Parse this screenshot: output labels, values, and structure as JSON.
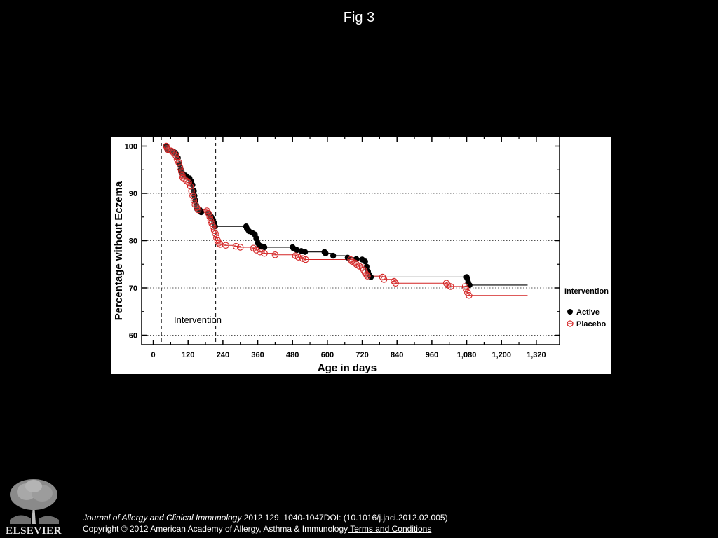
{
  "figure": {
    "title": "Fig 3"
  },
  "chart_data": {
    "type": "line",
    "subtype": "kaplan-meier step plot with censor markers",
    "title": "",
    "xlabel": "Age in days",
    "ylabel": "Percentage without Eczema",
    "xlim": [
      -40,
      1400
    ],
    "ylim": [
      58,
      102
    ],
    "xticks": [
      0,
      120,
      240,
      360,
      480,
      600,
      720,
      840,
      960,
      1080,
      1200,
      1320
    ],
    "xtick_labels": [
      "0",
      "120",
      "240",
      "360",
      "480",
      "600",
      "720",
      "840",
      "960",
      "1,080",
      "1,200",
      "1,320"
    ],
    "yticks": [
      60,
      70,
      80,
      90,
      100
    ],
    "ytick_labels": [
      "60",
      "70",
      "80",
      "90",
      "100"
    ],
    "grid": "horizontal dotted",
    "intervention_window": {
      "label": "Intervention",
      "start": 28,
      "end": 215
    },
    "legend": {
      "title": "Intervention",
      "position": "right",
      "entries": [
        "Active",
        "Placebo"
      ]
    },
    "series": [
      {
        "name": "Active",
        "color": "#000000",
        "marker": "filled-circle",
        "points": [
          [
            0,
            100
          ],
          [
            45,
            100
          ],
          [
            47,
            99.6
          ],
          [
            50,
            99.2
          ],
          [
            60,
            99
          ],
          [
            70,
            98.8
          ],
          [
            75,
            98.6
          ],
          [
            80,
            98.2
          ],
          [
            85,
            97.5
          ],
          [
            90,
            96.2
          ],
          [
            95,
            95
          ],
          [
            100,
            94.2
          ],
          [
            110,
            93.8
          ],
          [
            115,
            93.5
          ],
          [
            125,
            93.2
          ],
          [
            130,
            92.6
          ],
          [
            135,
            91.8
          ],
          [
            140,
            90.5
          ],
          [
            142,
            89.5
          ],
          [
            145,
            88.5
          ],
          [
            148,
            87.5
          ],
          [
            150,
            86.8
          ],
          [
            160,
            86.5
          ],
          [
            165,
            86
          ],
          [
            190,
            85.8
          ],
          [
            195,
            85.4
          ],
          [
            200,
            85
          ],
          [
            205,
            84.5
          ],
          [
            210,
            83.7
          ],
          [
            213,
            83
          ],
          [
            320,
            83
          ],
          [
            323,
            82.5
          ],
          [
            330,
            82
          ],
          [
            340,
            81.7
          ],
          [
            350,
            81.3
          ],
          [
            355,
            80.5
          ],
          [
            360,
            79.5
          ],
          [
            365,
            79
          ],
          [
            372,
            78.8
          ],
          [
            383,
            78.6
          ],
          [
            480,
            78.6
          ],
          [
            484,
            78.3
          ],
          [
            495,
            78
          ],
          [
            510,
            77.8
          ],
          [
            523,
            77.6
          ],
          [
            590,
            77.6
          ],
          [
            594,
            77.3
          ],
          [
            620,
            76.8
          ],
          [
            670,
            76.4
          ],
          [
            700,
            76.1
          ],
          [
            720,
            76
          ],
          [
            730,
            75.6
          ],
          [
            735,
            74.5
          ],
          [
            740,
            73.5
          ],
          [
            745,
            72.8
          ],
          [
            750,
            72.3
          ],
          [
            1080,
            72.3
          ],
          [
            1082,
            72
          ],
          [
            1085,
            71.2
          ],
          [
            1090,
            70.6
          ],
          [
            1290,
            70.6
          ]
        ]
      },
      {
        "name": "Placebo",
        "color": "#d42424",
        "marker": "open-circle",
        "points": [
          [
            0,
            100
          ],
          [
            45,
            100
          ],
          [
            48,
            99.5
          ],
          [
            52,
            99.2
          ],
          [
            62,
            99
          ],
          [
            70,
            98.6
          ],
          [
            78,
            98
          ],
          [
            82,
            97.2
          ],
          [
            88,
            96.5
          ],
          [
            92,
            95.5
          ],
          [
            97,
            94.6
          ],
          [
            100,
            93.8
          ],
          [
            102,
            93.3
          ],
          [
            108,
            93
          ],
          [
            115,
            92.6
          ],
          [
            122,
            92.3
          ],
          [
            128,
            91.5
          ],
          [
            132,
            90.5
          ],
          [
            136,
            89.5
          ],
          [
            140,
            88.5
          ],
          [
            144,
            87.6
          ],
          [
            150,
            87
          ],
          [
            155,
            86.5
          ],
          [
            185,
            86.3
          ],
          [
            190,
            85.8
          ],
          [
            195,
            85
          ],
          [
            198,
            84.3
          ],
          [
            202,
            83.6
          ],
          [
            206,
            83
          ],
          [
            210,
            82.2
          ],
          [
            214,
            81.5
          ],
          [
            218,
            80.6
          ],
          [
            222,
            80
          ],
          [
            226,
            79.5
          ],
          [
            230,
            79.2
          ],
          [
            250,
            79
          ],
          [
            285,
            78.8
          ],
          [
            300,
            78.6
          ],
          [
            345,
            78.4
          ],
          [
            355,
            78
          ],
          [
            368,
            77.6
          ],
          [
            383,
            77.3
          ],
          [
            420,
            77
          ],
          [
            490,
            76.8
          ],
          [
            500,
            76.5
          ],
          [
            515,
            76.2
          ],
          [
            525,
            76
          ],
          [
            680,
            76
          ],
          [
            685,
            75.6
          ],
          [
            695,
            75.3
          ],
          [
            700,
            75
          ],
          [
            710,
            74.6
          ],
          [
            720,
            74.3
          ],
          [
            725,
            73.8
          ],
          [
            730,
            73.2
          ],
          [
            735,
            72.8
          ],
          [
            738,
            72.5
          ],
          [
            790,
            72.3
          ],
          [
            795,
            71.8
          ],
          [
            830,
            71.4
          ],
          [
            835,
            71
          ],
          [
            1010,
            71
          ],
          [
            1015,
            70.6
          ],
          [
            1025,
            70.3
          ],
          [
            1075,
            70.3
          ],
          [
            1078,
            69.8
          ],
          [
            1083,
            69
          ],
          [
            1088,
            68.4
          ],
          [
            1290,
            68.4
          ]
        ]
      }
    ]
  },
  "footer": {
    "citation_journal": "Journal of Allergy and Clinical Immunology",
    "citation_details": " 2012 129, 1040-1047DOI: (10.1016/j.jaci.2012.02.005)",
    "copyright": "Copyright © 2012 American Academy of Allergy, Asthma & Immunology",
    "terms_link": " Terms and Conditions"
  },
  "logo": {
    "wordmark": "ELSEVIER"
  }
}
